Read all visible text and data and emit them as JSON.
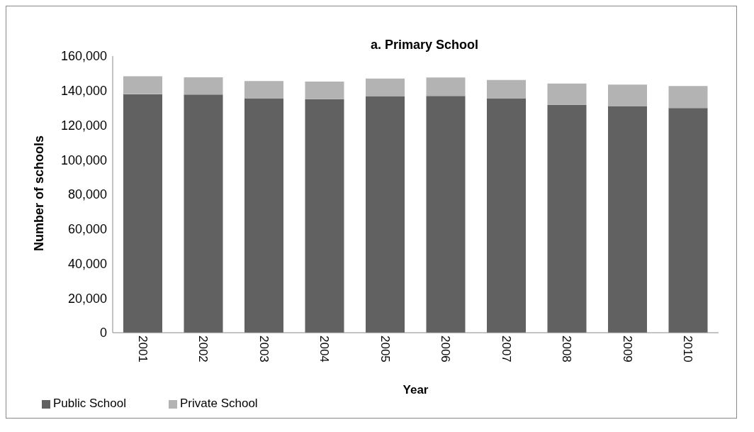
{
  "chart_data": {
    "type": "bar",
    "title": "a. Primary School",
    "xlabel": "Year",
    "ylabel": "Number of schools",
    "categories": [
      "2001",
      "2002",
      "2003",
      "2004",
      "2005",
      "2006",
      "2007",
      "2008",
      "2009",
      "2010"
    ],
    "series": [
      {
        "name": "Public School",
        "color": "#616161",
        "values": [
          138000,
          137700,
          135400,
          135100,
          136800,
          136900,
          135400,
          131800,
          130900,
          130000
        ]
      },
      {
        "name": "Private School",
        "color": "#b3b3b3",
        "values": [
          10300,
          10000,
          10100,
          10100,
          10200,
          10700,
          10800,
          12300,
          12600,
          12700
        ]
      }
    ],
    "stacked": true,
    "ylim": [
      0,
      160000
    ],
    "yticks": [
      0,
      {
        "value": 20000,
        "label": "20,000"
      },
      {
        "value": 40000,
        "label": "40,000"
      },
      {
        "value": 60000,
        "label": "60,000"
      },
      {
        "value": 80000,
        "label": "80,000"
      },
      {
        "value": 100000,
        "label": "100,000"
      },
      {
        "value": 120000,
        "label": "120,000"
      },
      {
        "value": 140000,
        "label": "140,000"
      },
      {
        "value": 160000,
        "label": "160,000"
      }
    ],
    "grid": false,
    "legend": "bottom left"
  }
}
